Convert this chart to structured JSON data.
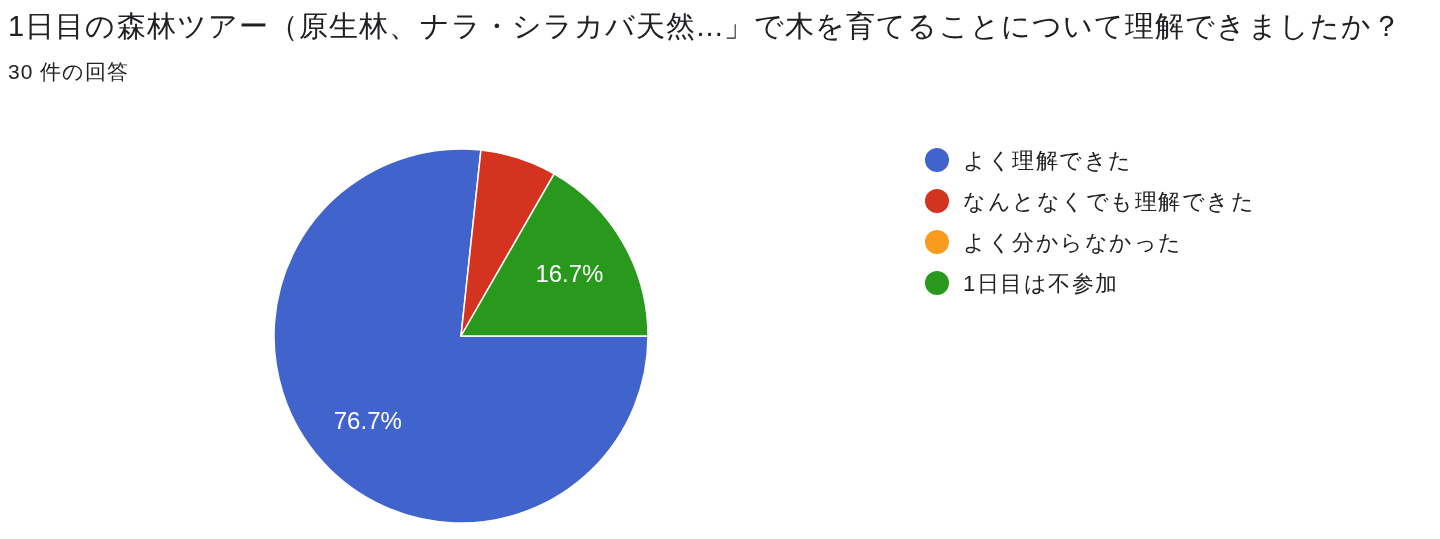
{
  "chart_data": {
    "type": "pie",
    "title": "1日目の森林ツアー（原生林、ナラ・シラカバ天然...」で木を育てることについて理解できましたか？",
    "subtitle": "30 件の回答",
    "categories": [
      "よく理解できた",
      "なんとなくでも理解できた",
      "よく分からなかった",
      "1日目は不参加"
    ],
    "values": [
      76.7,
      6.6,
      0,
      16.7
    ],
    "colors": [
      "#4063cc",
      "#d43320",
      "#f89b1e",
      "#28991d"
    ],
    "value_labels": [
      "76.7%",
      null,
      null,
      "16.7%"
    ],
    "legend": "right"
  }
}
